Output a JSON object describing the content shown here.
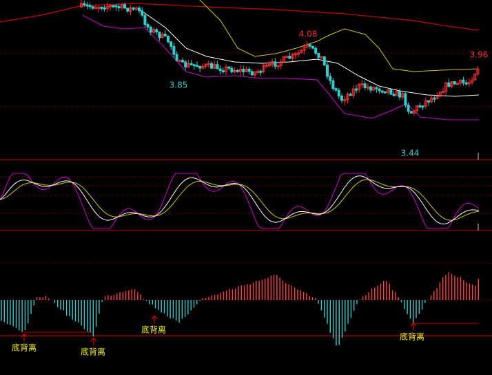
{
  "price_panel": {
    "labels": [
      {
        "value": 3.85
      },
      {
        "value": 4.08
      },
      {
        "value": 3.96
      },
      {
        "value": 3.44
      }
    ]
  },
  "macd_panel": {
    "signals": [
      "底背离",
      "底背离",
      "底背离",
      "底背离"
    ]
  }
}
